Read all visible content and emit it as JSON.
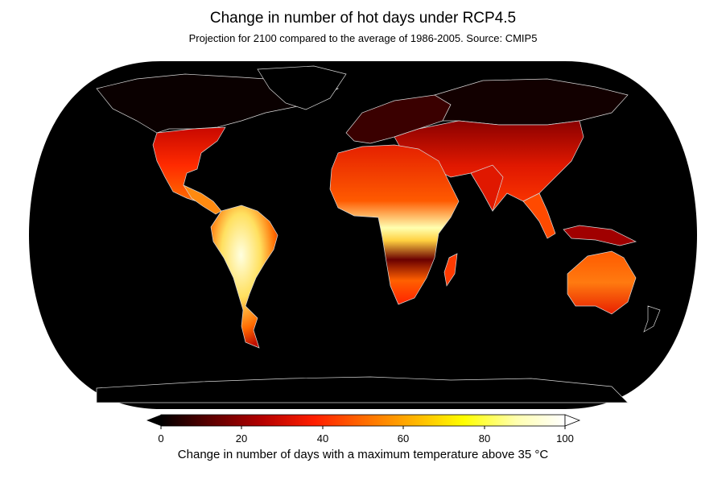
{
  "title": "Change in number of hot days under RCP4.5",
  "subtitle": "Projection for 2100 compared to the average of 1986-2005. Source: CMIP5",
  "colorbar": {
    "label": "Change in number of days with a maximum temperature above 35 °C",
    "ticks": [
      "0",
      "20",
      "40",
      "60",
      "80",
      "100"
    ],
    "min": 0,
    "max": 100,
    "extend": "both",
    "colors": [
      "#000000",
      "#5a0000",
      "#b40000",
      "#ff1e00",
      "#ff6a00",
      "#ffb000",
      "#ffff00",
      "#ffffb0",
      "#ffffff"
    ]
  },
  "map": {
    "projection": "Robinson",
    "ocean_color": "#000000",
    "coastline_color": "#d8d8d8"
  }
}
